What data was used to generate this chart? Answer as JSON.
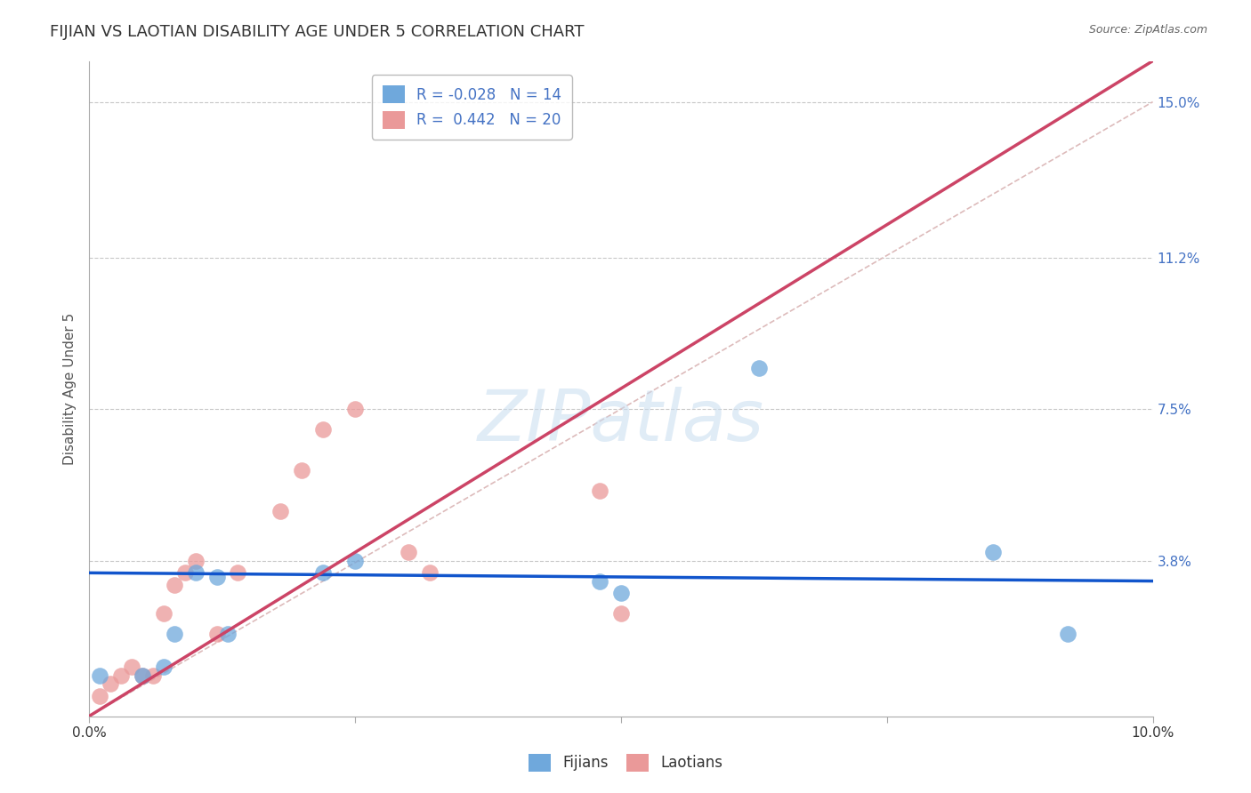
{
  "title": "FIJIAN VS LAOTIAN DISABILITY AGE UNDER 5 CORRELATION CHART",
  "source_text": "Source: ZipAtlas.com",
  "ylabel": "Disability Age Under 5",
  "xlim": [
    0.0,
    0.1
  ],
  "ylim": [
    0.0,
    0.16
  ],
  "ytick_labels_right": [
    "3.8%",
    "7.5%",
    "11.2%",
    "15.0%"
  ],
  "ytick_vals_right": [
    0.038,
    0.075,
    0.112,
    0.15
  ],
  "grid_color": "#c8c8c8",
  "fijian_color": "#6fa8dc",
  "laotian_color": "#ea9999",
  "fijian_line_color": "#1155cc",
  "laotian_line_color": "#cc4466",
  "diag_color": "#ddbbbb",
  "fijian_R": -0.028,
  "fijian_N": 14,
  "laotian_R": 0.442,
  "laotian_N": 20,
  "fijian_x": [
    0.001,
    0.005,
    0.007,
    0.008,
    0.01,
    0.012,
    0.013,
    0.022,
    0.025,
    0.048,
    0.05,
    0.063,
    0.085,
    0.092
  ],
  "fijian_y": [
    0.01,
    0.01,
    0.012,
    0.02,
    0.035,
    0.034,
    0.02,
    0.035,
    0.038,
    0.033,
    0.03,
    0.085,
    0.04,
    0.02
  ],
  "laotian_x": [
    0.001,
    0.002,
    0.003,
    0.004,
    0.005,
    0.006,
    0.007,
    0.008,
    0.009,
    0.01,
    0.012,
    0.014,
    0.018,
    0.02,
    0.022,
    0.025,
    0.03,
    0.032,
    0.048,
    0.05
  ],
  "laotian_y": [
    0.005,
    0.008,
    0.01,
    0.012,
    0.01,
    0.01,
    0.025,
    0.032,
    0.035,
    0.038,
    0.02,
    0.035,
    0.05,
    0.06,
    0.07,
    0.075,
    0.04,
    0.035,
    0.055,
    0.025
  ],
  "watermark_text": "ZIPatlas",
  "legend_fijian_label": "Fijians",
  "legend_laotian_label": "Laotians",
  "title_fontsize": 13,
  "axis_label_fontsize": 11,
  "tick_label_fontsize": 11,
  "background_color": "#ffffff"
}
